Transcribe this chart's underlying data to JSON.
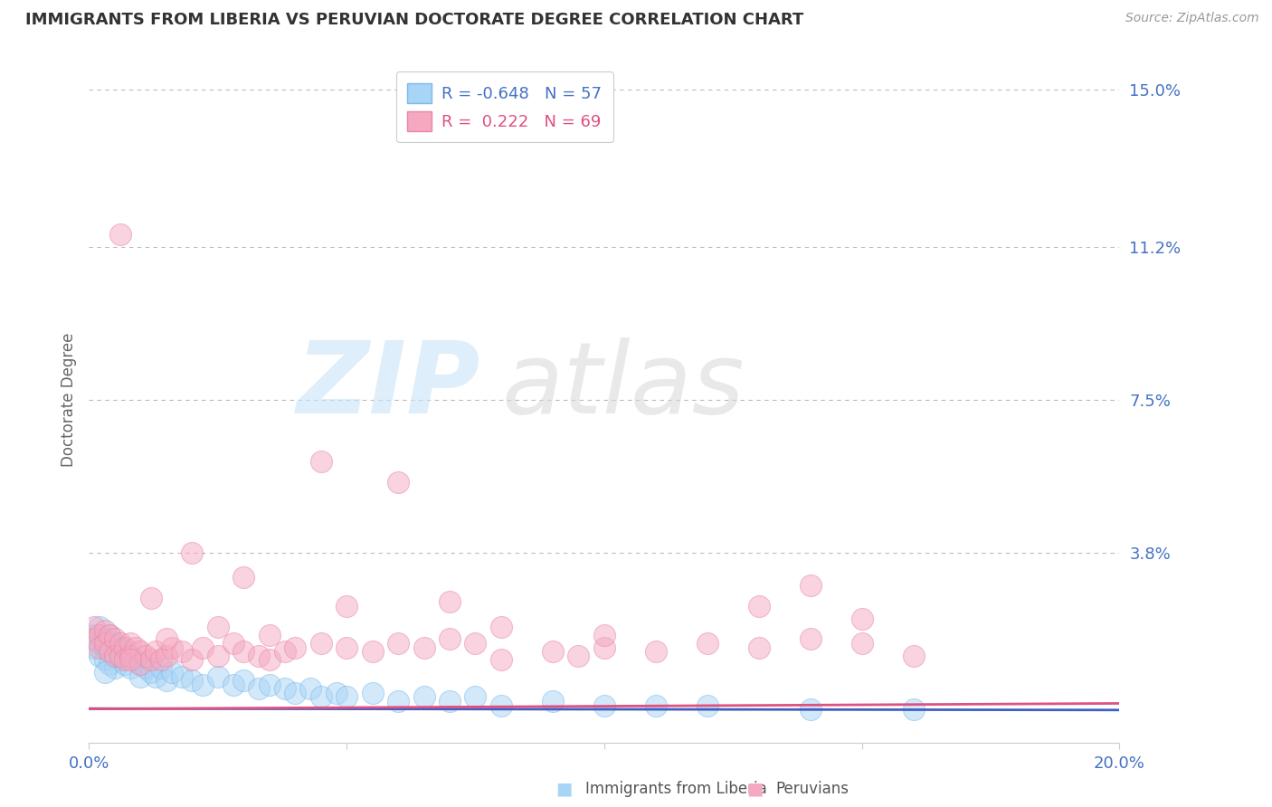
{
  "title": "IMMIGRANTS FROM LIBERIA VS PERUVIAN DOCTORATE DEGREE CORRELATION CHART",
  "source": "Source: ZipAtlas.com",
  "ylabel": "Doctorate Degree",
  "xlim": [
    0.0,
    0.2
  ],
  "ylim": [
    -0.008,
    0.158
  ],
  "yticks": [
    0.0,
    0.038,
    0.075,
    0.112,
    0.15
  ],
  "ytick_labels": [
    "",
    "3.8%",
    "7.5%",
    "11.2%",
    "15.0%"
  ],
  "xticks": [
    0.0,
    0.05,
    0.1,
    0.15,
    0.2
  ],
  "xtick_labels": [
    "0.0%",
    "",
    "",
    "",
    "20.0%"
  ],
  "legend_R1": "-0.648",
  "legend_N1": "57",
  "legend_R2": "0.222",
  "legend_N2": "69",
  "color_blue": "#A8D4F5",
  "color_pink": "#F5A8C0",
  "color_trend_blue": "#4060C0",
  "color_trend_pink": "#E05080",
  "color_tick": "#4472C4",
  "background_color": "#FFFFFF",
  "grid_color": "#BBBBBB",
  "blue_trend": [
    0.02,
    -0.015
  ],
  "pink_trend": [
    0.01,
    0.145
  ],
  "blue_scatter_x": [
    0.001,
    0.001,
    0.002,
    0.002,
    0.002,
    0.003,
    0.003,
    0.003,
    0.004,
    0.004,
    0.004,
    0.005,
    0.005,
    0.005,
    0.006,
    0.006,
    0.007,
    0.007,
    0.008,
    0.008,
    0.009,
    0.01,
    0.01,
    0.011,
    0.012,
    0.013,
    0.014,
    0.015,
    0.016,
    0.018,
    0.02,
    0.022,
    0.025,
    0.028,
    0.03,
    0.033,
    0.035,
    0.038,
    0.04,
    0.043,
    0.045,
    0.048,
    0.05,
    0.055,
    0.06,
    0.065,
    0.07,
    0.075,
    0.08,
    0.09,
    0.1,
    0.11,
    0.12,
    0.14,
    0.16,
    0.003,
    0.006
  ],
  "blue_scatter_y": [
    0.018,
    0.015,
    0.016,
    0.013,
    0.02,
    0.017,
    0.012,
    0.015,
    0.014,
    0.018,
    0.011,
    0.016,
    0.013,
    0.01,
    0.015,
    0.012,
    0.014,
    0.011,
    0.013,
    0.01,
    0.012,
    0.011,
    0.008,
    0.01,
    0.009,
    0.008,
    0.01,
    0.007,
    0.009,
    0.008,
    0.007,
    0.006,
    0.008,
    0.006,
    0.007,
    0.005,
    0.006,
    0.005,
    0.004,
    0.005,
    0.003,
    0.004,
    0.003,
    0.004,
    0.002,
    0.003,
    0.002,
    0.003,
    0.001,
    0.002,
    0.001,
    0.001,
    0.001,
    0.0,
    0.0,
    0.009,
    0.013
  ],
  "pink_scatter_x": [
    0.001,
    0.001,
    0.002,
    0.002,
    0.003,
    0.003,
    0.004,
    0.004,
    0.005,
    0.005,
    0.006,
    0.006,
    0.007,
    0.007,
    0.008,
    0.008,
    0.009,
    0.01,
    0.01,
    0.011,
    0.012,
    0.013,
    0.014,
    0.015,
    0.016,
    0.018,
    0.02,
    0.022,
    0.025,
    0.028,
    0.03,
    0.033,
    0.035,
    0.038,
    0.04,
    0.045,
    0.05,
    0.055,
    0.06,
    0.065,
    0.07,
    0.075,
    0.08,
    0.09,
    0.095,
    0.1,
    0.11,
    0.12,
    0.13,
    0.14,
    0.15,
    0.16,
    0.045,
    0.06,
    0.02,
    0.03,
    0.012,
    0.05,
    0.07,
    0.14,
    0.08,
    0.1,
    0.13,
    0.15,
    0.025,
    0.035,
    0.015,
    0.008,
    0.006
  ],
  "pink_scatter_y": [
    0.02,
    0.017,
    0.018,
    0.015,
    0.019,
    0.016,
    0.018,
    0.014,
    0.017,
    0.013,
    0.016,
    0.013,
    0.015,
    0.012,
    0.016,
    0.013,
    0.015,
    0.014,
    0.011,
    0.013,
    0.012,
    0.014,
    0.012,
    0.013,
    0.015,
    0.014,
    0.012,
    0.015,
    0.013,
    0.016,
    0.014,
    0.013,
    0.012,
    0.014,
    0.015,
    0.016,
    0.015,
    0.014,
    0.016,
    0.015,
    0.017,
    0.016,
    0.012,
    0.014,
    0.013,
    0.015,
    0.014,
    0.016,
    0.015,
    0.017,
    0.016,
    0.013,
    0.06,
    0.055,
    0.038,
    0.032,
    0.027,
    0.025,
    0.026,
    0.03,
    0.02,
    0.018,
    0.025,
    0.022,
    0.02,
    0.018,
    0.017,
    0.012,
    0.115
  ]
}
